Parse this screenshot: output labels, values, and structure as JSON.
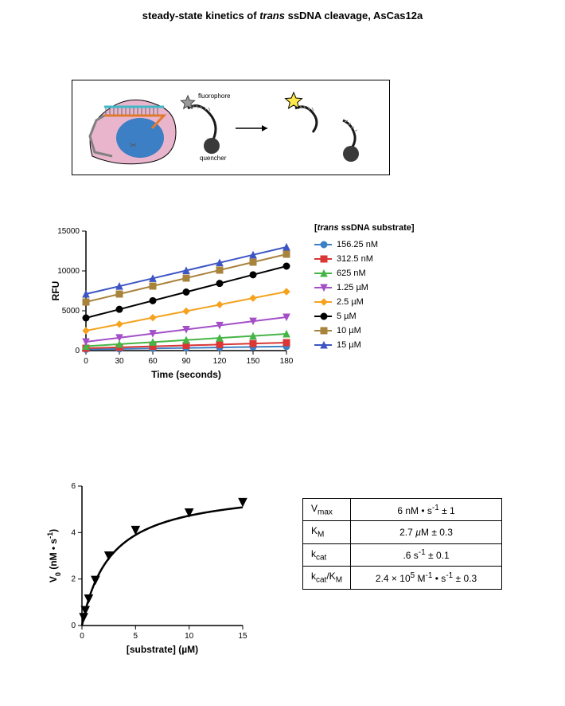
{
  "title_prefix": "steady-state kinetics of ",
  "title_ital": "trans",
  "title_suffix": " ssDNA cleavage, AsCas12a",
  "diagram": {
    "fluorophore_label": "fluorophore",
    "quencher_label": "quencher",
    "colors": {
      "enzyme_body": "#e8b5cc",
      "enzyme_core": "#3d7fc4",
      "dna_cyan": "#3fb9c9",
      "dna_orange": "#e07b2e",
      "dna_gray": "#808080",
      "star_off": "#9a9a9a",
      "star_on": "#ffe94a",
      "quencher": "#3a3a3a",
      "strand": "#1a1a1a"
    }
  },
  "chart1": {
    "type": "line-scatter",
    "xlabel": "Time (seconds)",
    "ylabel": "RFU",
    "xlim": [
      0,
      180
    ],
    "ylim": [
      0,
      15000
    ],
    "xticks": [
      0,
      30,
      60,
      90,
      120,
      150,
      180
    ],
    "yticks": [
      0,
      5000,
      10000,
      15000
    ],
    "background": "#ffffff",
    "axis_color": "#000000",
    "label_fontsize": 12,
    "tick_fontsize": 10,
    "series": [
      {
        "label": "156.25 nM",
        "color": "#3d7fc4",
        "marker": "circle",
        "y0": 150,
        "y1": 520
      },
      {
        "label": "312.5 nM",
        "color": "#d93636",
        "marker": "square",
        "y0": 300,
        "y1": 1000
      },
      {
        "label": "625 nM",
        "color": "#45b545",
        "marker": "triangle-up",
        "y0": 550,
        "y1": 2100
      },
      {
        "label": "1.25 µM",
        "color": "#a44fc7",
        "marker": "triangle-down",
        "y0": 1100,
        "y1": 4200
      },
      {
        "label": "2.5 µM",
        "color": "#f5a21f",
        "marker": "diamond",
        "y0": 2500,
        "y1": 7400
      },
      {
        "label": "5 µM",
        "color": "#000000",
        "marker": "circle",
        "y0": 4100,
        "y1": 10600
      },
      {
        "label": "10 µM",
        "color": "#a8833c",
        "marker": "square",
        "y0": 6100,
        "y1": 12100
      },
      {
        "label": "15 µM",
        "color": "#3d55c4",
        "marker": "triangle-up",
        "y0": 7100,
        "y1": 13000
      }
    ]
  },
  "legend1_title_prefix": "[",
  "legend1_title_ital": "trans",
  "legend1_title_suffix": " ssDNA substrate]",
  "chart2": {
    "type": "saturation-curve",
    "xlabel": "[substrate] (µM)",
    "ylabel_html": "V<tspan baseline-shift='sub' font-size='9'>0</tspan> (nM • s<tspan baseline-shift='super' font-size='9'>-1</tspan>)",
    "ylabel_text": "V0 (nM • s-1)",
    "xlim": [
      0,
      15
    ],
    "ylim": [
      0,
      6
    ],
    "xticks": [
      0,
      5,
      10,
      15
    ],
    "yticks": [
      0,
      2,
      4,
      6
    ],
    "color": "#000000",
    "marker": "triangle-down",
    "points_x": [
      0.156,
      0.312,
      0.625,
      1.25,
      2.5,
      5,
      10,
      15
    ],
    "points_y": [
      0.35,
      0.65,
      1.15,
      1.95,
      3.0,
      4.1,
      4.85,
      5.3
    ],
    "vmax": 6,
    "km": 2.7
  },
  "params": [
    {
      "name_html": "V<sub>max</sub>",
      "value": "6 nM • s<sup>-1</sup> ± 1"
    },
    {
      "name_html": "K<sub>M</sub>",
      "value": "2.7 <i>µ</i>M ± 0.3"
    },
    {
      "name_html": "k<sub>cat</sub>",
      "value": ".6 s<sup>-1</sup> ± 0.1"
    },
    {
      "name_html": "k<sub>cat</sub>/K<sub>M</sub>",
      "value": "2.4 × 10<sup>5</sup> M<sup>-1</sup> • s<sup>-1</sup> ± 0.3"
    }
  ]
}
